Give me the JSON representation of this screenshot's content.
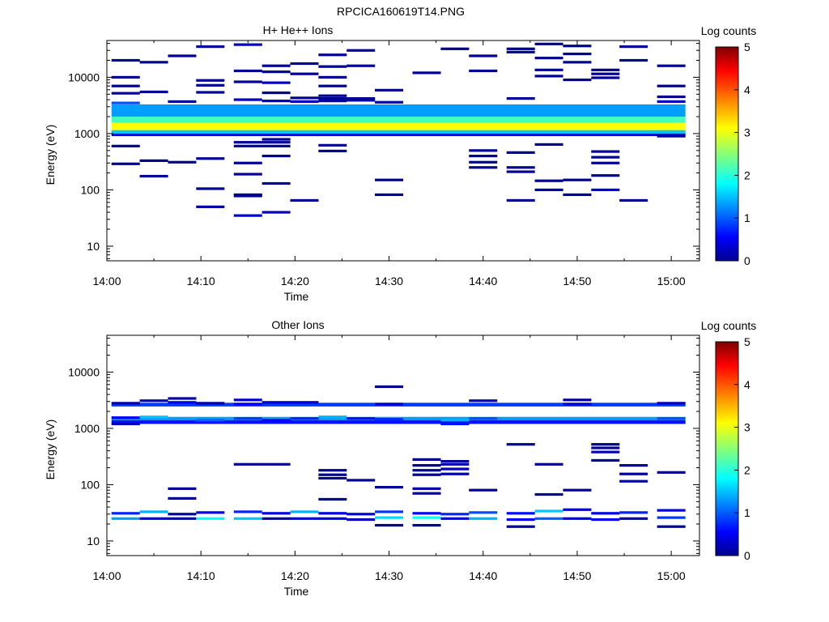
{
  "figure_title": "RPCICA160619T14.PNG",
  "colorbar_scale": "jet",
  "chart_data": [
    {
      "type": "heatmap",
      "title": "H+ He++ Ions",
      "xlabel": "Time",
      "ylabel": "Energy (eV)",
      "colorbar_label": "Log counts",
      "colorbar_ticks": [
        "0",
        "1",
        "2",
        "3",
        "4",
        "5"
      ],
      "clim": [
        0,
        5
      ],
      "x_ticks": [
        "14:00",
        "14:10",
        "14:20",
        "14:30",
        "14:40",
        "14:50",
        "15:00"
      ],
      "xlim": [
        "14:00",
        "15:03"
      ],
      "y_ticks": [
        "10",
        "100",
        "1000",
        "10000"
      ],
      "y_scale": "log",
      "ylim": [
        5.5,
        45000
      ],
      "time_bins": [
        "14:02",
        "14:05",
        "14:08",
        "14:11",
        "14:15",
        "14:18",
        "14:21",
        "14:24",
        "14:27",
        "14:30",
        "14:34",
        "14:37",
        "14:40",
        "14:44",
        "14:47",
        "14:50",
        "14:53",
        "14:56",
        "15:00"
      ],
      "background_bands": [
        {
          "e_lo": 2000,
          "e_hi": 3300,
          "t0": 0,
          "t1": 19,
          "v": 1.4
        },
        {
          "e_lo": 1550,
          "e_hi": 2000,
          "t0": 0,
          "t1": 19,
          "v": 2.2
        },
        {
          "e_lo": 1150,
          "e_hi": 1550,
          "t0": 0,
          "t1": 19,
          "v": 3.1
        },
        {
          "e_lo": 1000,
          "e_hi": 1150,
          "t0": 0,
          "t1": 19,
          "v": 1.6
        },
        {
          "e_lo": 900,
          "e_hi": 1000,
          "t0": 0,
          "t1": 19,
          "v": 0.6
        }
      ],
      "cells": [
        [
          0,
          20000,
          0.1
        ],
        [
          0,
          10000,
          0.1
        ],
        [
          0,
          7000,
          0.1
        ],
        [
          0,
          5200,
          0.1
        ],
        [
          0,
          3500,
          1.0
        ],
        [
          0,
          600,
          0.1
        ],
        [
          0,
          290,
          0.1
        ],
        [
          1,
          18500,
          0.1
        ],
        [
          1,
          5500,
          0.1
        ],
        [
          1,
          330,
          0.1
        ],
        [
          1,
          175,
          0.1
        ],
        [
          2,
          24000,
          0.1
        ],
        [
          2,
          3700,
          0.2
        ],
        [
          2,
          310,
          0.1
        ],
        [
          3,
          35000,
          0.1
        ],
        [
          3,
          8800,
          0.1
        ],
        [
          3,
          7200,
          0.1
        ],
        [
          3,
          5400,
          0.1
        ],
        [
          3,
          360,
          0.1
        ],
        [
          3,
          105,
          0.1
        ],
        [
          3,
          50,
          0.2
        ],
        [
          4,
          38000,
          0.3
        ],
        [
          4,
          13000,
          0.1
        ],
        [
          4,
          8300,
          0.1
        ],
        [
          4,
          4000,
          0.3
        ],
        [
          4,
          700,
          0.1
        ],
        [
          4,
          600,
          0.1
        ],
        [
          4,
          300,
          0.1
        ],
        [
          4,
          190,
          0.1
        ],
        [
          4,
          82,
          0.1
        ],
        [
          4,
          78,
          0.1
        ],
        [
          4,
          35,
          0.4
        ],
        [
          5,
          16000,
          0.1
        ],
        [
          5,
          12500,
          0.1
        ],
        [
          5,
          8000,
          0.4
        ],
        [
          5,
          5300,
          0.1
        ],
        [
          5,
          3800,
          0.3
        ],
        [
          5,
          790,
          0.1
        ],
        [
          5,
          700,
          0.1
        ],
        [
          5,
          600,
          0.1
        ],
        [
          5,
          400,
          0.1
        ],
        [
          5,
          130,
          0.1
        ],
        [
          5,
          40,
          0.3
        ],
        [
          6,
          17500,
          0.1
        ],
        [
          6,
          11500,
          0.1
        ],
        [
          6,
          4300,
          0.1
        ],
        [
          6,
          3700,
          0.3
        ],
        [
          6,
          65,
          0.1
        ],
        [
          7,
          25000,
          0.1
        ],
        [
          7,
          15500,
          0.1
        ],
        [
          7,
          10000,
          0.1
        ],
        [
          7,
          7000,
          0.1
        ],
        [
          7,
          4700,
          0.1
        ],
        [
          7,
          4200,
          0.1
        ],
        [
          7,
          3800,
          0.2
        ],
        [
          7,
          620,
          0.1
        ],
        [
          7,
          490,
          0.1
        ],
        [
          8,
          30000,
          0.1
        ],
        [
          8,
          16000,
          0.1
        ],
        [
          8,
          4200,
          0.1
        ],
        [
          8,
          3900,
          0.2
        ],
        [
          9,
          5900,
          0.1
        ],
        [
          9,
          3600,
          0.3
        ],
        [
          9,
          150,
          0.1
        ],
        [
          9,
          82,
          0.1
        ],
        [
          10,
          12000,
          0.1
        ],
        [
          11,
          32000,
          0.1
        ],
        [
          12,
          24000,
          0.1
        ],
        [
          12,
          13000,
          0.1
        ],
        [
          12,
          500,
          0.1
        ],
        [
          12,
          400,
          0.1
        ],
        [
          12,
          310,
          0.1
        ],
        [
          12,
          250,
          0.1
        ],
        [
          13,
          32000,
          0.1
        ],
        [
          13,
          28000,
          0.1
        ],
        [
          13,
          4200,
          0.1
        ],
        [
          13,
          460,
          0.1
        ],
        [
          13,
          250,
          0.1
        ],
        [
          13,
          210,
          0.1
        ],
        [
          13,
          65,
          0.1
        ],
        [
          14,
          39000,
          0.1
        ],
        [
          14,
          22000,
          0.1
        ],
        [
          14,
          13500,
          0.3
        ],
        [
          14,
          10500,
          0.1
        ],
        [
          14,
          640,
          0.1
        ],
        [
          14,
          145,
          0.1
        ],
        [
          14,
          100,
          0.2
        ],
        [
          15,
          36000,
          0.1
        ],
        [
          15,
          26000,
          0.1
        ],
        [
          15,
          18500,
          0.1
        ],
        [
          15,
          9000,
          0.1
        ],
        [
          15,
          150,
          0.1
        ],
        [
          15,
          82,
          0.1
        ],
        [
          16,
          13500,
          0.1
        ],
        [
          16,
          11500,
          0.1
        ],
        [
          16,
          9800,
          0.1
        ],
        [
          16,
          480,
          0.1
        ],
        [
          16,
          380,
          0.1
        ],
        [
          16,
          300,
          0.1
        ],
        [
          16,
          180,
          0.1
        ],
        [
          16,
          100,
          0.45
        ],
        [
          17,
          35000,
          0.1
        ],
        [
          17,
          20000,
          0.1
        ],
        [
          17,
          65,
          0.1
        ],
        [
          18,
          16000,
          0.1
        ],
        [
          18,
          7000,
          0.1
        ],
        [
          18,
          4500,
          0.1
        ],
        [
          18,
          3700,
          0.3
        ],
        [
          18,
          900,
          0.1
        ]
      ]
    },
    {
      "type": "heatmap",
      "title": "Other Ions",
      "xlabel": "Time",
      "ylabel": "Energy (eV)",
      "colorbar_label": "Log counts",
      "colorbar_ticks": [
        "0",
        "1",
        "2",
        "3",
        "4",
        "5"
      ],
      "clim": [
        0,
        5
      ],
      "x_ticks": [
        "14:00",
        "14:10",
        "14:20",
        "14:30",
        "14:40",
        "14:50",
        "15:00"
      ],
      "xlim": [
        "14:00",
        "15:03"
      ],
      "y_ticks": [
        "10",
        "100",
        "1000",
        "10000"
      ],
      "y_scale": "log",
      "ylim": [
        5.5,
        45000
      ],
      "time_bins": [
        "14:02",
        "14:05",
        "14:08",
        "14:11",
        "14:15",
        "14:18",
        "14:21",
        "14:24",
        "14:27",
        "14:30",
        "14:34",
        "14:37",
        "14:40",
        "14:44",
        "14:47",
        "14:50",
        "14:53",
        "14:56",
        "15:00"
      ],
      "background_bands": [
        {
          "e_lo": 2450,
          "e_hi": 2850,
          "t0": 0,
          "t1": 19,
          "v": 0.9
        },
        {
          "e_lo": 1400,
          "e_hi": 1600,
          "t0": 0,
          "t1": 19,
          "v": 1.4
        },
        {
          "e_lo": 1200,
          "e_hi": 1400,
          "t0": 0,
          "t1": 19,
          "v": 0.7
        }
      ],
      "cells": [
        [
          0,
          2800,
          0.2
        ],
        [
          0,
          1550,
          0.6
        ],
        [
          0,
          1200,
          0.35
        ],
        [
          0,
          31,
          0.8
        ],
        [
          0,
          25,
          1.4
        ],
        [
          1,
          3100,
          0.3
        ],
        [
          1,
          1600,
          1.6
        ],
        [
          1,
          33,
          1.5
        ],
        [
          1,
          25,
          0.5
        ],
        [
          2,
          3400,
          0.2
        ],
        [
          2,
          2900,
          0.5
        ],
        [
          2,
          85,
          0.1
        ],
        [
          2,
          57,
          0.1
        ],
        [
          2,
          30,
          0.2
        ],
        [
          2,
          25,
          0.3
        ],
        [
          3,
          2800,
          0.2
        ],
        [
          3,
          1400,
          1.1
        ],
        [
          3,
          32,
          0.6
        ],
        [
          3,
          25,
          1.9
        ],
        [
          4,
          3200,
          0.4
        ],
        [
          4,
          2700,
          0.6
        ],
        [
          4,
          1500,
          0.9
        ],
        [
          4,
          230,
          0.1
        ],
        [
          4,
          33,
          0.8
        ],
        [
          4,
          25,
          1.6
        ],
        [
          5,
          2900,
          0.4
        ],
        [
          5,
          1400,
          0.6
        ],
        [
          5,
          230,
          0.1
        ],
        [
          5,
          31,
          0.5
        ],
        [
          5,
          25,
          0.2
        ],
        [
          6,
          2900,
          0.4
        ],
        [
          6,
          1500,
          0.8
        ],
        [
          6,
          33,
          1.5
        ],
        [
          6,
          25,
          0.6
        ],
        [
          7,
          1600,
          1.5
        ],
        [
          7,
          180,
          0.1
        ],
        [
          7,
          150,
          0.1
        ],
        [
          7,
          130,
          0.1
        ],
        [
          7,
          55,
          0.1
        ],
        [
          7,
          31,
          0.5
        ],
        [
          7,
          25,
          0.5
        ],
        [
          8,
          1500,
          0.7
        ],
        [
          8,
          120,
          0.1
        ],
        [
          8,
          30,
          0.5
        ],
        [
          8,
          24,
          0.3
        ],
        [
          9,
          5500,
          0.1
        ],
        [
          9,
          2700,
          0.4
        ],
        [
          9,
          1450,
          0.8
        ],
        [
          9,
          33,
          0.9
        ],
        [
          9,
          26,
          1.7
        ],
        [
          9,
          19,
          0.1
        ],
        [
          9,
          90,
          0.1
        ],
        [
          10,
          280,
          0.1
        ],
        [
          10,
          220,
          0.1
        ],
        [
          10,
          180,
          0.1
        ],
        [
          10,
          150,
          0.1
        ],
        [
          10,
          85,
          0.2
        ],
        [
          10,
          70,
          0.1
        ],
        [
          10,
          31,
          0.6
        ],
        [
          10,
          26,
          1.9
        ],
        [
          10,
          19,
          0.1
        ],
        [
          11,
          260,
          0.15
        ],
        [
          11,
          230,
          0.25
        ],
        [
          11,
          190,
          0.3
        ],
        [
          11,
          155,
          0.2
        ],
        [
          11,
          1400,
          1.5
        ],
        [
          11,
          1200,
          0.7
        ],
        [
          11,
          30,
          0.8
        ],
        [
          11,
          25,
          0.6
        ],
        [
          12,
          3100,
          0.3
        ],
        [
          12,
          1500,
          1.0
        ],
        [
          12,
          80,
          0.1
        ],
        [
          12,
          32,
          1.0
        ],
        [
          12,
          25,
          1.5
        ],
        [
          13,
          520,
          0.1
        ],
        [
          13,
          31,
          0.7
        ],
        [
          13,
          24,
          0.6
        ],
        [
          13,
          18,
          0.1
        ],
        [
          14,
          230,
          0.1
        ],
        [
          14,
          67,
          0.1
        ],
        [
          14,
          34,
          1.6
        ],
        [
          14,
          25,
          1.1
        ],
        [
          15,
          3200,
          0.2
        ],
        [
          15,
          2700,
          0.4
        ],
        [
          15,
          80,
          0.1
        ],
        [
          15,
          36,
          0.35
        ],
        [
          15,
          25,
          0.55
        ],
        [
          16,
          520,
          0.1
        ],
        [
          16,
          450,
          0.1
        ],
        [
          16,
          380,
          0.3
        ],
        [
          16,
          270,
          0.1
        ],
        [
          16,
          31,
          0.5
        ],
        [
          16,
          24,
          0.6
        ],
        [
          17,
          220,
          0.1
        ],
        [
          17,
          155,
          0.15
        ],
        [
          17,
          115,
          0.3
        ],
        [
          17,
          32,
          0.8
        ],
        [
          17,
          25,
          0.2
        ],
        [
          18,
          2800,
          0.3
        ],
        [
          18,
          1500,
          1.0
        ],
        [
          18,
          165,
          0.1
        ],
        [
          18,
          35,
          0.5
        ],
        [
          18,
          26,
          0.9
        ],
        [
          18,
          18,
          0.1
        ]
      ]
    }
  ]
}
